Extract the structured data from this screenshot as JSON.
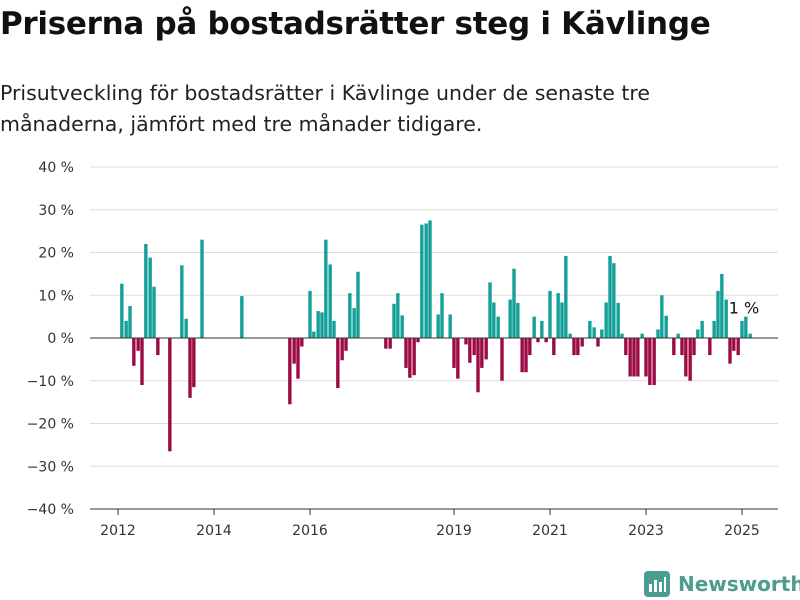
{
  "chart_data": {
    "type": "bar",
    "title": "Priserna på bostadsrätter steg i Kävlinge",
    "subtitle": "Prisutveckling för bostadsrätter i Kävlinge under de senaste tre månaderna, jämfört med tre månader tidigare.",
    "xlabel": "",
    "ylabel": "",
    "ylim": [
      -40,
      40
    ],
    "yticks": [
      40,
      30,
      20,
      10,
      0,
      -10,
      -20,
      -30,
      -40
    ],
    "ytick_labels": [
      "40 %",
      "30 %",
      "20 %",
      "10 %",
      "0 %",
      "−10 %",
      "−20 %",
      "−30 %",
      "−40 %"
    ],
    "xticks": [
      "2012",
      "2014",
      "2016",
      "2019",
      "2021",
      "2023",
      "2025"
    ],
    "xtick_values": [
      2012.0,
      2014.0,
      2016.0,
      2019.0,
      2021.0,
      2023.0,
      2025.0
    ],
    "grid": true,
    "legend": "none",
    "colors": {
      "positive": "#14a098",
      "negative": "#9b0a43",
      "grid": "#dddddd",
      "axis": "#333333"
    },
    "annotation": {
      "text": "1 %",
      "x": 2025.0,
      "y": 1
    },
    "bars": [
      {
        "x": 2012.08,
        "y": 12.7
      },
      {
        "x": 2012.17,
        "y": 4
      },
      {
        "x": 2012.25,
        "y": 7.5
      },
      {
        "x": 2012.33,
        "y": -6.5
      },
      {
        "x": 2012.42,
        "y": -3
      },
      {
        "x": 2012.5,
        "y": -11
      },
      {
        "x": 2012.58,
        "y": 22
      },
      {
        "x": 2012.67,
        "y": 18.8
      },
      {
        "x": 2012.75,
        "y": 12
      },
      {
        "x": 2012.83,
        "y": -4
      },
      {
        "x": 2013.08,
        "y": -26.5
      },
      {
        "x": 2013.33,
        "y": 17
      },
      {
        "x": 2013.42,
        "y": 4.5
      },
      {
        "x": 2013.5,
        "y": -14
      },
      {
        "x": 2013.58,
        "y": -11.5
      },
      {
        "x": 2013.75,
        "y": 23
      },
      {
        "x": 2014.58,
        "y": 9.8
      },
      {
        "x": 2015.58,
        "y": -15.5
      },
      {
        "x": 2015.67,
        "y": -6
      },
      {
        "x": 2015.75,
        "y": -9.5
      },
      {
        "x": 2015.83,
        "y": -2
      },
      {
        "x": 2016.0,
        "y": 11
      },
      {
        "x": 2016.08,
        "y": 1.5
      },
      {
        "x": 2016.17,
        "y": 6.3
      },
      {
        "x": 2016.25,
        "y": 6
      },
      {
        "x": 2016.33,
        "y": 23
      },
      {
        "x": 2016.42,
        "y": 17.2
      },
      {
        "x": 2016.5,
        "y": 4
      },
      {
        "x": 2016.58,
        "y": -11.7
      },
      {
        "x": 2016.67,
        "y": -5.2
      },
      {
        "x": 2016.75,
        "y": -3
      },
      {
        "x": 2016.83,
        "y": 10.5
      },
      {
        "x": 2016.92,
        "y": 7
      },
      {
        "x": 2017.0,
        "y": 15.5
      },
      {
        "x": 2017.58,
        "y": -2.5
      },
      {
        "x": 2017.67,
        "y": -2.5
      },
      {
        "x": 2017.75,
        "y": 8
      },
      {
        "x": 2017.83,
        "y": 10.5
      },
      {
        "x": 2017.92,
        "y": 5.3
      },
      {
        "x": 2018.0,
        "y": -7
      },
      {
        "x": 2018.08,
        "y": -9.3
      },
      {
        "x": 2018.17,
        "y": -8.7
      },
      {
        "x": 2018.25,
        "y": -1
      },
      {
        "x": 2018.33,
        "y": 26.5
      },
      {
        "x": 2018.42,
        "y": 26.8
      },
      {
        "x": 2018.5,
        "y": 27.5
      },
      {
        "x": 2018.67,
        "y": 5.5
      },
      {
        "x": 2018.75,
        "y": 10.5
      },
      {
        "x": 2018.92,
        "y": 5.5
      },
      {
        "x": 2019.0,
        "y": -7
      },
      {
        "x": 2019.08,
        "y": -9.5
      },
      {
        "x": 2019.25,
        "y": -1.5
      },
      {
        "x": 2019.33,
        "y": -5.8
      },
      {
        "x": 2019.42,
        "y": -4
      },
      {
        "x": 2019.5,
        "y": -12.7
      },
      {
        "x": 2019.58,
        "y": -7
      },
      {
        "x": 2019.67,
        "y": -5
      },
      {
        "x": 2019.75,
        "y": 13
      },
      {
        "x": 2019.83,
        "y": 8.3
      },
      {
        "x": 2019.92,
        "y": 5
      },
      {
        "x": 2020.0,
        "y": -10
      },
      {
        "x": 2020.17,
        "y": 9
      },
      {
        "x": 2020.25,
        "y": 16.2
      },
      {
        "x": 2020.33,
        "y": 8.2
      },
      {
        "x": 2020.42,
        "y": -8
      },
      {
        "x": 2020.5,
        "y": -8
      },
      {
        "x": 2020.58,
        "y": -4
      },
      {
        "x": 2020.67,
        "y": 5
      },
      {
        "x": 2020.75,
        "y": -1
      },
      {
        "x": 2020.83,
        "y": 4
      },
      {
        "x": 2020.92,
        "y": -1
      },
      {
        "x": 2021.0,
        "y": 11
      },
      {
        "x": 2021.08,
        "y": -4
      },
      {
        "x": 2021.17,
        "y": 10.5
      },
      {
        "x": 2021.25,
        "y": 8.3
      },
      {
        "x": 2021.33,
        "y": 19.2
      },
      {
        "x": 2021.42,
        "y": 1
      },
      {
        "x": 2021.5,
        "y": -4
      },
      {
        "x": 2021.58,
        "y": -4
      },
      {
        "x": 2021.67,
        "y": -2
      },
      {
        "x": 2021.83,
        "y": 4
      },
      {
        "x": 2021.92,
        "y": 2.5
      },
      {
        "x": 2022.0,
        "y": -2
      },
      {
        "x": 2022.08,
        "y": 2
      },
      {
        "x": 2022.17,
        "y": 8.3
      },
      {
        "x": 2022.25,
        "y": 19.2
      },
      {
        "x": 2022.33,
        "y": 17.5
      },
      {
        "x": 2022.42,
        "y": 8.2
      },
      {
        "x": 2022.5,
        "y": 1
      },
      {
        "x": 2022.58,
        "y": -4
      },
      {
        "x": 2022.67,
        "y": -9
      },
      {
        "x": 2022.75,
        "y": -9
      },
      {
        "x": 2022.83,
        "y": -9
      },
      {
        "x": 2022.92,
        "y": 1
      },
      {
        "x": 2023.0,
        "y": -9
      },
      {
        "x": 2023.08,
        "y": -11
      },
      {
        "x": 2023.17,
        "y": -11
      },
      {
        "x": 2023.25,
        "y": 2
      },
      {
        "x": 2023.33,
        "y": 10
      },
      {
        "x": 2023.42,
        "y": 5.2
      },
      {
        "x": 2023.58,
        "y": -4
      },
      {
        "x": 2023.67,
        "y": 1
      },
      {
        "x": 2023.75,
        "y": -4
      },
      {
        "x": 2023.83,
        "y": -9
      },
      {
        "x": 2023.92,
        "y": -10
      },
      {
        "x": 2024.0,
        "y": -4
      },
      {
        "x": 2024.08,
        "y": 2
      },
      {
        "x": 2024.17,
        "y": 4
      },
      {
        "x": 2024.33,
        "y": -4
      },
      {
        "x": 2024.42,
        "y": 4
      },
      {
        "x": 2024.5,
        "y": 11
      },
      {
        "x": 2024.58,
        "y": 15
      },
      {
        "x": 2024.67,
        "y": 9
      },
      {
        "x": 2024.75,
        "y": -6
      },
      {
        "x": 2024.83,
        "y": -3
      },
      {
        "x": 2024.92,
        "y": -4
      },
      {
        "x": 2025.0,
        "y": 4
      },
      {
        "x": 2025.08,
        "y": 5
      },
      {
        "x": 2025.17,
        "y": 1
      }
    ]
  },
  "brand": {
    "name": "Newsworthy",
    "icon": "newsworthy-logo-icon",
    "color": "#4a9d8f"
  }
}
